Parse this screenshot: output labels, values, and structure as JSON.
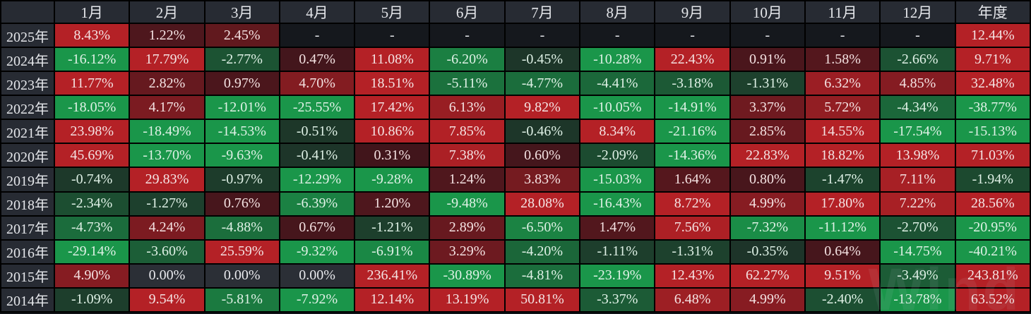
{
  "chart_data": {
    "type": "table",
    "title": "",
    "corner_label": "",
    "month_headers": [
      "1月",
      "2月",
      "3月",
      "4月",
      "5月",
      "6月",
      "7月",
      "8月",
      "9月",
      "10月",
      "11月",
      "12月"
    ],
    "annual_header": "年度",
    "empty_value": "-",
    "color_scale_cap": 8,
    "rows": [
      {
        "year": "2025年",
        "monthly": [
          "8.43%",
          "1.22%",
          "2.45%",
          "-",
          "-",
          "-",
          "-",
          "-",
          "-",
          "-",
          "-",
          "-"
        ],
        "annual": "12.44%"
      },
      {
        "year": "2024年",
        "monthly": [
          "-16.12%",
          "17.79%",
          "-2.77%",
          "0.47%",
          "11.08%",
          "-6.20%",
          "-0.45%",
          "-10.28%",
          "22.43%",
          "0.91%",
          "1.58%",
          "-2.66%"
        ],
        "annual": "9.71%"
      },
      {
        "year": "2023年",
        "monthly": [
          "11.77%",
          "2.82%",
          "0.97%",
          "4.70%",
          "18.51%",
          "-5.11%",
          "-4.77%",
          "-4.41%",
          "-3.18%",
          "-1.31%",
          "6.32%",
          "4.85%"
        ],
        "annual": "32.48%"
      },
      {
        "year": "2022年",
        "monthly": [
          "-18.05%",
          "4.17%",
          "-12.01%",
          "-25.55%",
          "17.42%",
          "6.13%",
          "9.82%",
          "-10.05%",
          "-14.91%",
          "3.37%",
          "5.72%",
          "-4.34%"
        ],
        "annual": "-38.77%"
      },
      {
        "year": "2021年",
        "monthly": [
          "23.98%",
          "-18.49%",
          "-14.53%",
          "-0.51%",
          "10.86%",
          "7.85%",
          "-0.46%",
          "8.34%",
          "-21.16%",
          "2.85%",
          "14.55%",
          "-17.54%"
        ],
        "annual": "-15.13%"
      },
      {
        "year": "2020年",
        "monthly": [
          "45.69%",
          "-13.70%",
          "-9.63%",
          "-0.41%",
          "0.31%",
          "7.38%",
          "0.60%",
          "-2.09%",
          "-14.36%",
          "22.83%",
          "18.82%",
          "13.98%"
        ],
        "annual": "71.03%"
      },
      {
        "year": "2019年",
        "monthly": [
          "-0.74%",
          "29.83%",
          "-0.97%",
          "-12.29%",
          "-9.28%",
          "1.24%",
          "3.83%",
          "-15.03%",
          "1.64%",
          "0.80%",
          "-1.47%",
          "7.11%"
        ],
        "annual": "-1.94%"
      },
      {
        "year": "2018年",
        "monthly": [
          "-2.34%",
          "-1.27%",
          "0.76%",
          "-6.39%",
          "1.20%",
          "-9.48%",
          "28.08%",
          "-16.43%",
          "8.72%",
          "4.99%",
          "17.80%",
          "7.22%"
        ],
        "annual": "28.56%"
      },
      {
        "year": "2017年",
        "monthly": [
          "-4.73%",
          "4.24%",
          "-4.88%",
          "0.67%",
          "-1.21%",
          "2.89%",
          "-6.50%",
          "1.47%",
          "7.56%",
          "-7.32%",
          "-11.12%",
          "-2.70%"
        ],
        "annual": "-20.95%"
      },
      {
        "year": "2016年",
        "monthly": [
          "-29.14%",
          "-3.60%",
          "25.59%",
          "-9.32%",
          "-6.91%",
          "3.29%",
          "-4.20%",
          "-1.11%",
          "-1.31%",
          "-0.35%",
          "0.64%",
          "-14.75%"
        ],
        "annual": "-40.21%"
      },
      {
        "year": "2015年",
        "monthly": [
          "4.90%",
          "0.00%",
          "0.00%",
          "0.00%",
          "236.41%",
          "-30.89%",
          "-4.81%",
          "-23.19%",
          "12.43%",
          "62.27%",
          "9.51%",
          "-3.49%"
        ],
        "annual": "243.81%"
      },
      {
        "year": "2014年",
        "monthly": [
          "-1.09%",
          "9.54%",
          "-5.81%",
          "-7.92%",
          "12.14%",
          "13.19%",
          "50.81%",
          "-3.37%",
          "6.48%",
          "4.99%",
          "-2.40%",
          "-13.78%"
        ],
        "annual": "63.52%"
      }
    ]
  },
  "colors": {
    "header_bg": "#272b33",
    "year_label_bg": "#272b33",
    "empty_bg": "#15181d",
    "zero_bg": "#2b2f36",
    "pos_bright": "#b42126",
    "pos_dark": "#3c151b",
    "neg_bright": "#1a964a",
    "neg_dark": "#1d3027",
    "header_text": "#e4e6ea",
    "pos_text": "#f4e2e2",
    "neg_text": "#dff1e6",
    "neutral_text": "#e9eaee",
    "border": "#000000"
  },
  "watermark": "Wind"
}
